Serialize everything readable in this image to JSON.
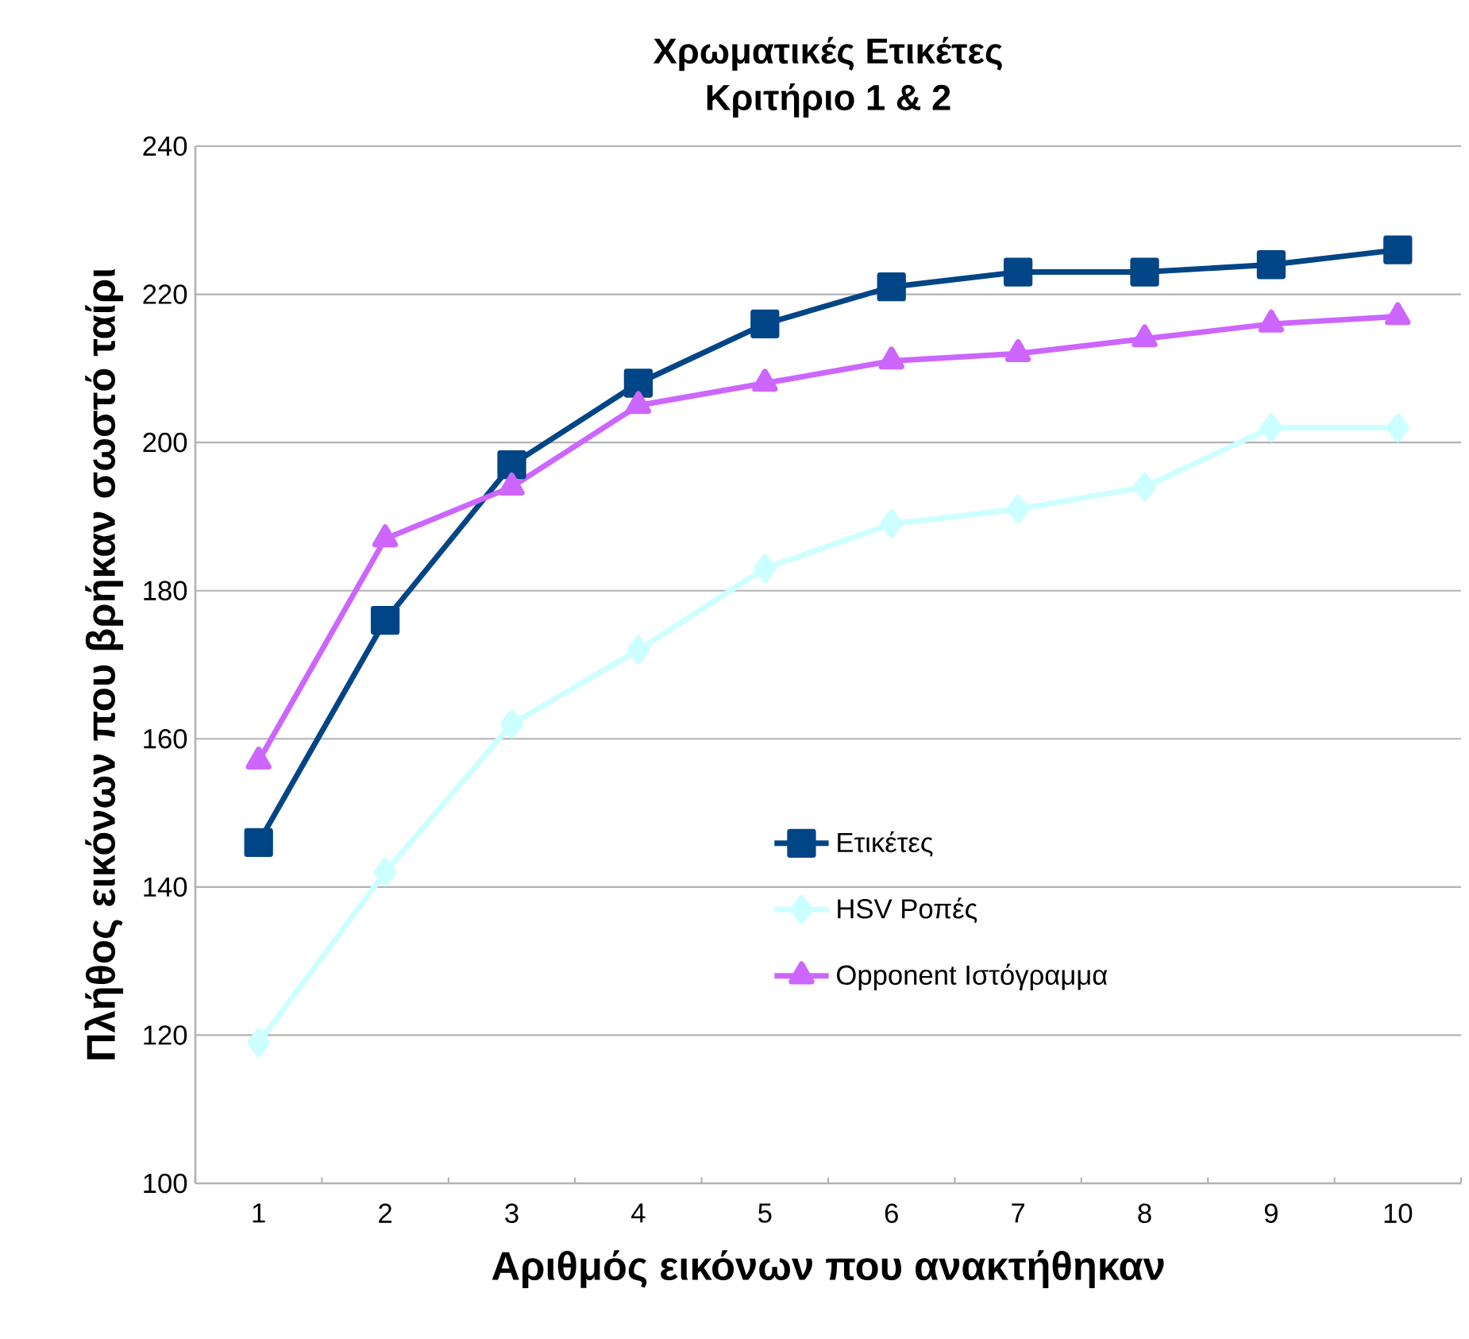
{
  "chart_data": {
    "type": "line",
    "title": "Χρωματικές Ετικέτες",
    "subtitle": "Κριτήριο 1 & 2",
    "xlabel": "Αριθμός εικόνων που ανακτήθηκαν",
    "ylabel": "Πλήθος εικόνων που βρήκαν σωστό ταίρι",
    "categories": [
      "1",
      "2",
      "3",
      "4",
      "5",
      "6",
      "7",
      "8",
      "9",
      "10"
    ],
    "series": [
      {
        "name": "Ετικέτες",
        "color": "#004586",
        "marker": "square",
        "values": [
          146,
          176,
          197,
          208,
          216,
          221,
          223,
          223,
          224,
          226
        ]
      },
      {
        "name": "HSV Ροπές",
        "color": "#ccffff",
        "marker": "diamond",
        "values": [
          119,
          142,
          162,
          172,
          183,
          189,
          191,
          194,
          202,
          202
        ]
      },
      {
        "name": "Opponent Ιστόγραμμα",
        "color": "#cc66ff",
        "marker": "triangle",
        "values": [
          157,
          187,
          194,
          205,
          208,
          211,
          212,
          214,
          216,
          217
        ]
      }
    ],
    "ylim": [
      100,
      240
    ],
    "yticks": [
      100,
      120,
      140,
      160,
      180,
      200,
      220,
      240
    ],
    "grid": "y",
    "legend": "bottom",
    "line_style": "solid"
  }
}
